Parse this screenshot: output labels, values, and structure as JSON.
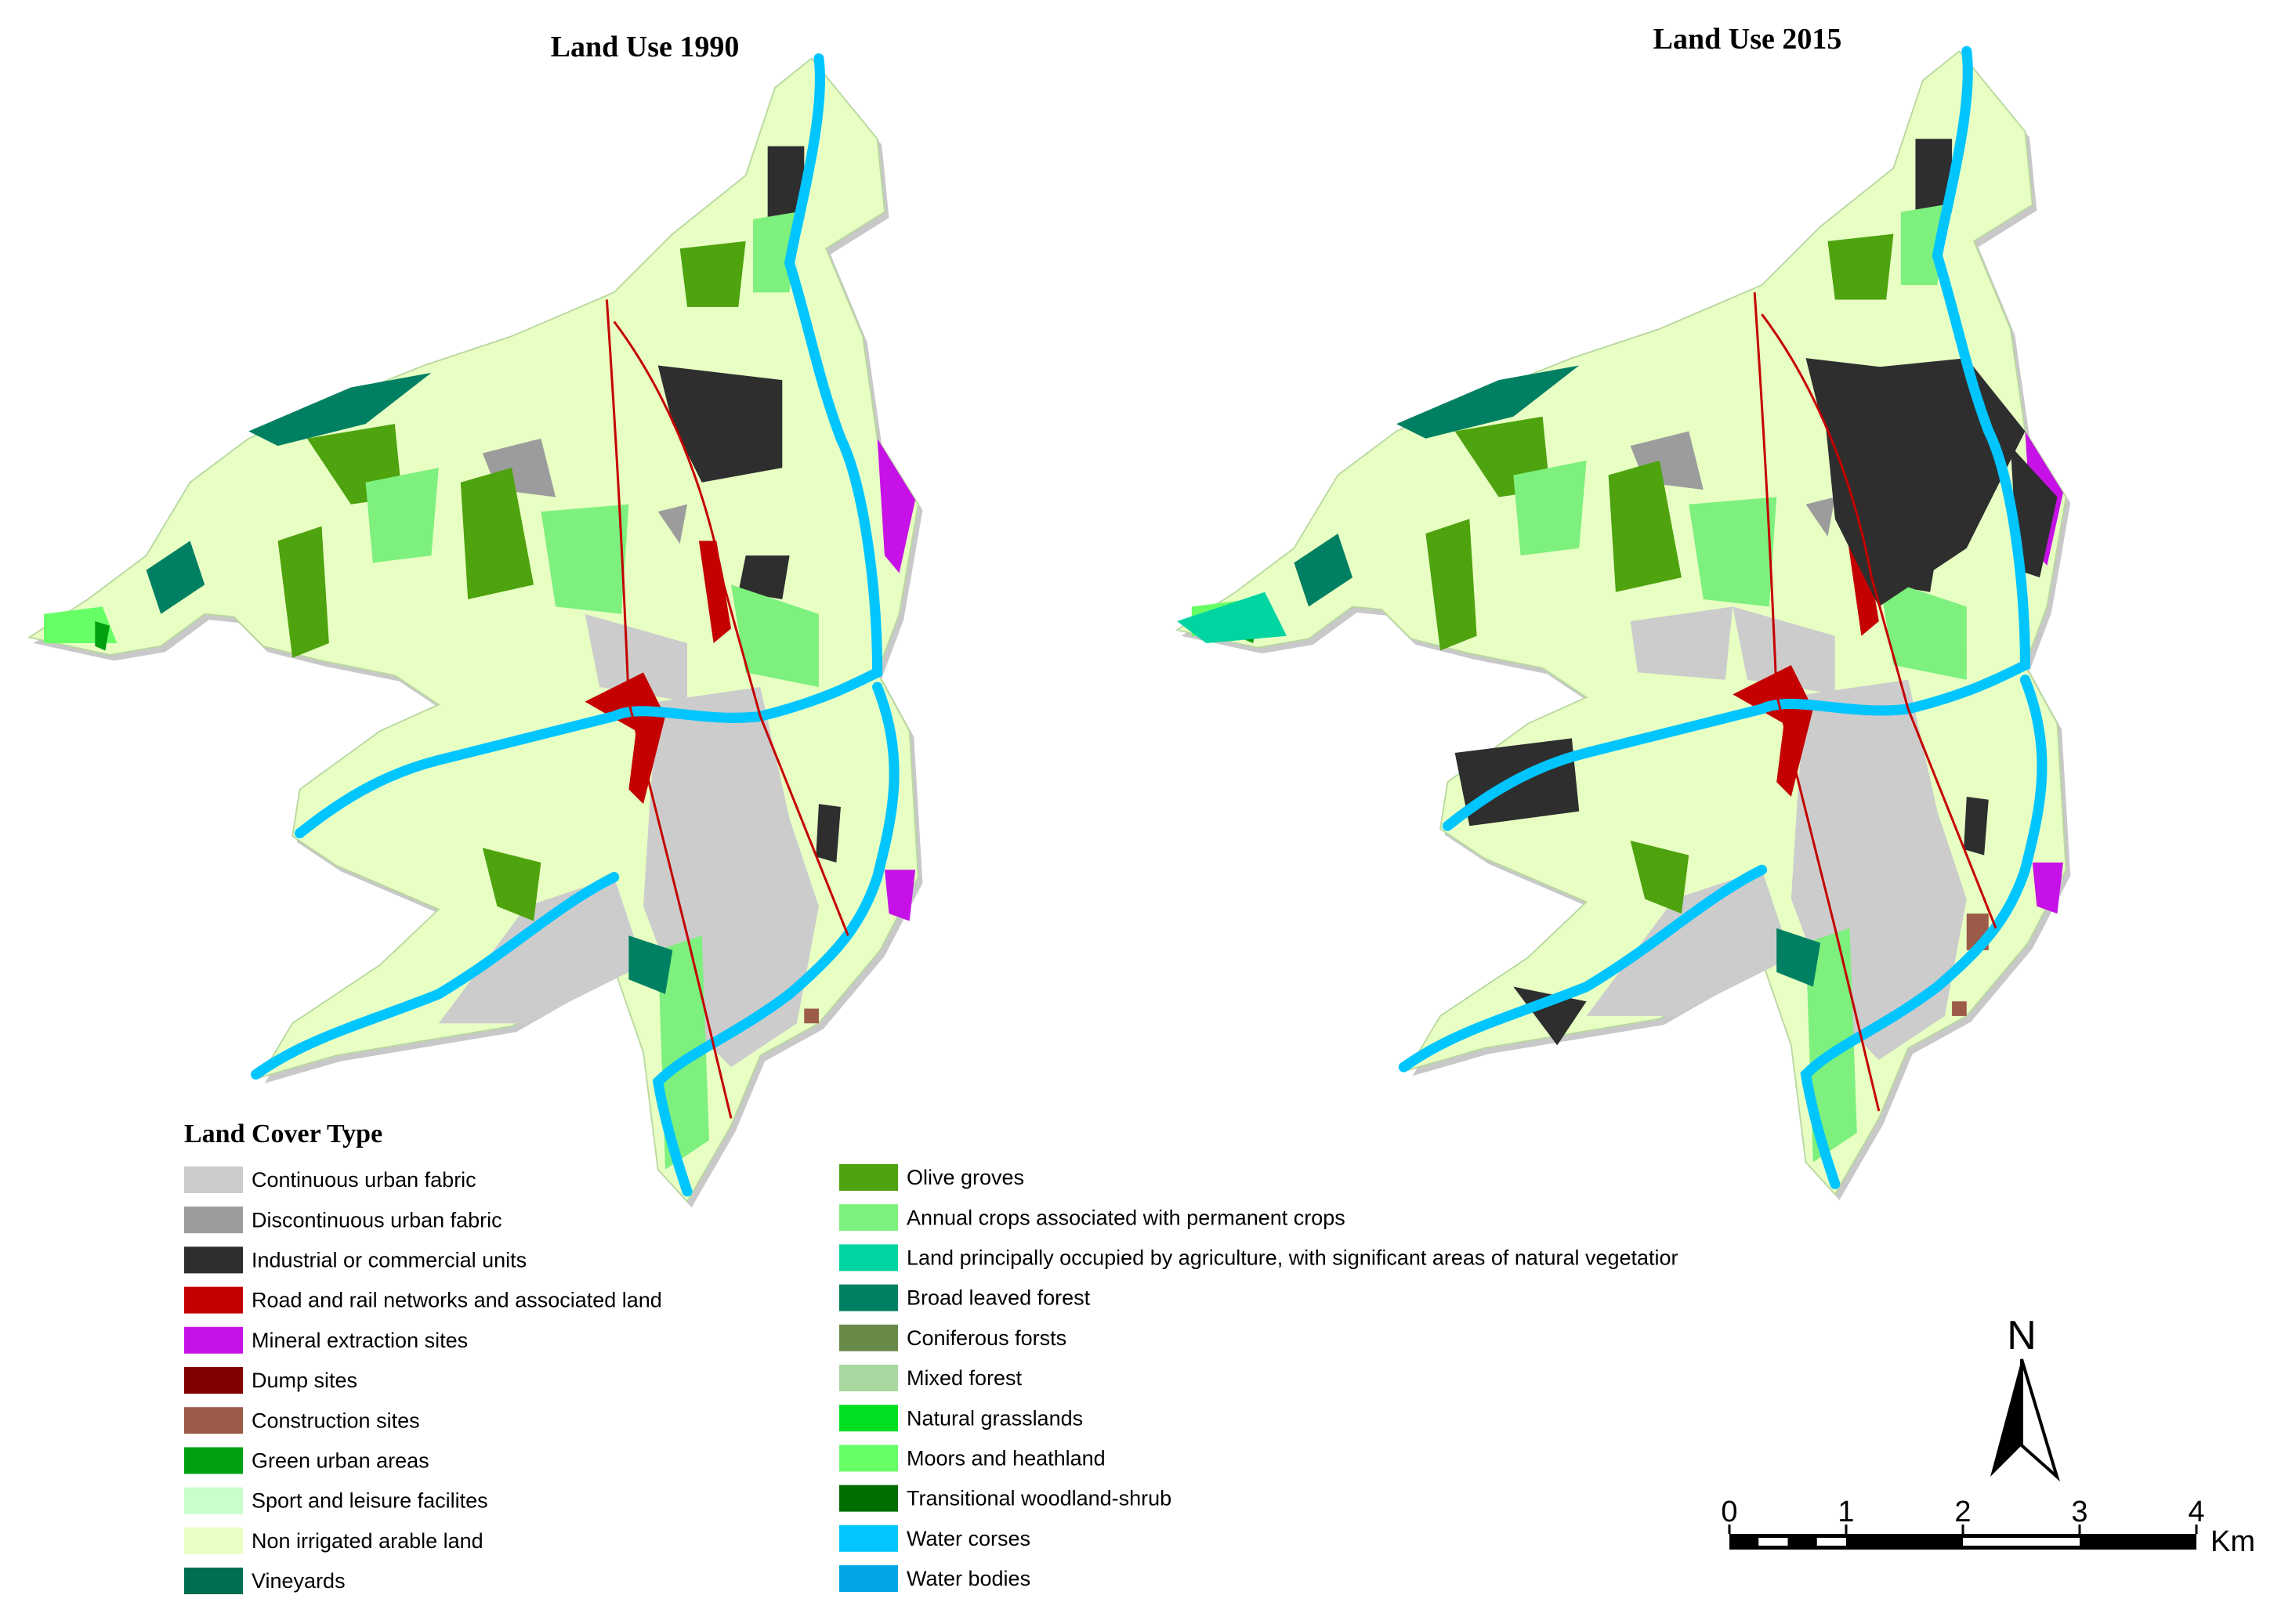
{
  "maps": [
    {
      "title": "Land Use 1990"
    },
    {
      "title": "Land Use 2015"
    }
  ],
  "legend": {
    "title": "Land Cover Type",
    "columns": [
      [
        {
          "label": "Continuous urban fabric",
          "color": "#cccccc"
        },
        {
          "label": "Discontinuous urban fabric",
          "color": "#9c9c9c"
        },
        {
          "label": "Industrial or commercial units",
          "color": "#2e2e2e"
        },
        {
          "label": "Road and rail networks and associated land",
          "color": "#c40000"
        },
        {
          "label": "Mineral extraction sites",
          "color": "#c612e6"
        },
        {
          "label": "Dump sites",
          "color": "#800000"
        },
        {
          "label": "Construction sites",
          "color": "#9c5a48"
        },
        {
          "label": "Green urban areas",
          "color": "#00a010"
        },
        {
          "label": "Sport and leisure facilites",
          "color": "#c8ffcc"
        },
        {
          "label": "Non irrigated arable land",
          "color": "#e8ffc4"
        },
        {
          "label": "Vineyards",
          "color": "#006e50"
        }
      ],
      [
        {
          "label": "Olive groves",
          "color": "#4ea30e"
        },
        {
          "label": "Annual crops associated with permanent crops",
          "color": "#7df07d"
        },
        {
          "label": "Land principally occupied by agriculture, with significant areas of natural vegetatior",
          "color": "#00d4a0"
        },
        {
          "label": "Broad leaved forest",
          "color": "#008062"
        },
        {
          "label": "Coniferous forsts",
          "color": "#6a8a4a"
        },
        {
          "label": "Mixed forest",
          "color": "#a8d8a0"
        },
        {
          "label": "Natural grasslands",
          "color": "#00e020"
        },
        {
          "label": "Moors and heathland",
          "color": "#66ff66"
        },
        {
          "label": "Transitional woodland-shrub",
          "color": "#006e00"
        },
        {
          "label": "Water corses",
          "color": "#00c5ff"
        },
        {
          "label": "Water bodies",
          "color": "#00a6e6"
        }
      ]
    ]
  },
  "north_arrow": "N",
  "scale_bar": {
    "ticks": [
      0,
      1,
      2,
      3,
      4
    ],
    "unit": "Km"
  }
}
